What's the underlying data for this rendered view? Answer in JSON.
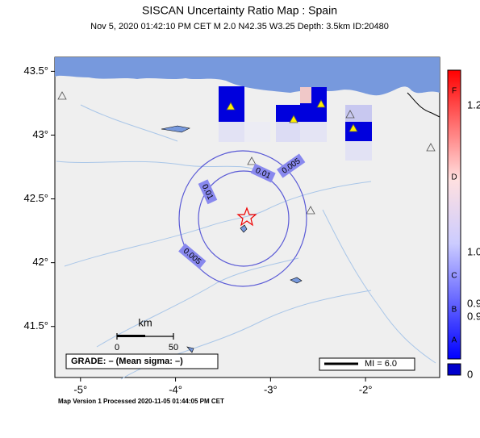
{
  "header": {
    "title": "SISCAN Uncertainty Ratio Map : Spain",
    "subtitle": "Nov  5, 2020 01:42:10 PM CET   M 2.0   N42.35 W3.25   Depth: 3.5km   ID:20480"
  },
  "map": {
    "lon_range": [
      -5.27,
      -1.22
    ],
    "lat_range": [
      41.1,
      43.61
    ],
    "lon_ticks": [
      {
        "value": -5,
        "label": "-5°"
      },
      {
        "value": -4,
        "label": "-4°"
      },
      {
        "value": -3,
        "label": "-3°"
      },
      {
        "value": -2,
        "label": "-2°"
      }
    ],
    "lat_ticks": [
      {
        "value": 43.5,
        "label": "43.5°"
      },
      {
        "value": 43,
        "label": "43°"
      },
      {
        "value": 42.5,
        "label": "42.5°"
      },
      {
        "value": 42,
        "label": "42°"
      },
      {
        "value": 41.5,
        "label": "41.5°"
      }
    ],
    "contour_labels": [
      "0.01",
      "0.005",
      "0.01",
      "0.005"
    ],
    "scale": {
      "unit": "km",
      "start": "0",
      "end": "50"
    },
    "grade": "GRADE: – (Mean sigma: –)",
    "mi_legend": "MI = 6.0"
  },
  "colorbar": {
    "letters": [
      "F",
      "D",
      "C",
      "B",
      "A"
    ],
    "values": [
      "1.2",
      "1.0",
      "0.9",
      "0.9",
      "0"
    ]
  },
  "footer": "Map Version 1 Processed 2020-11-05 01:44:05 PM CET"
}
